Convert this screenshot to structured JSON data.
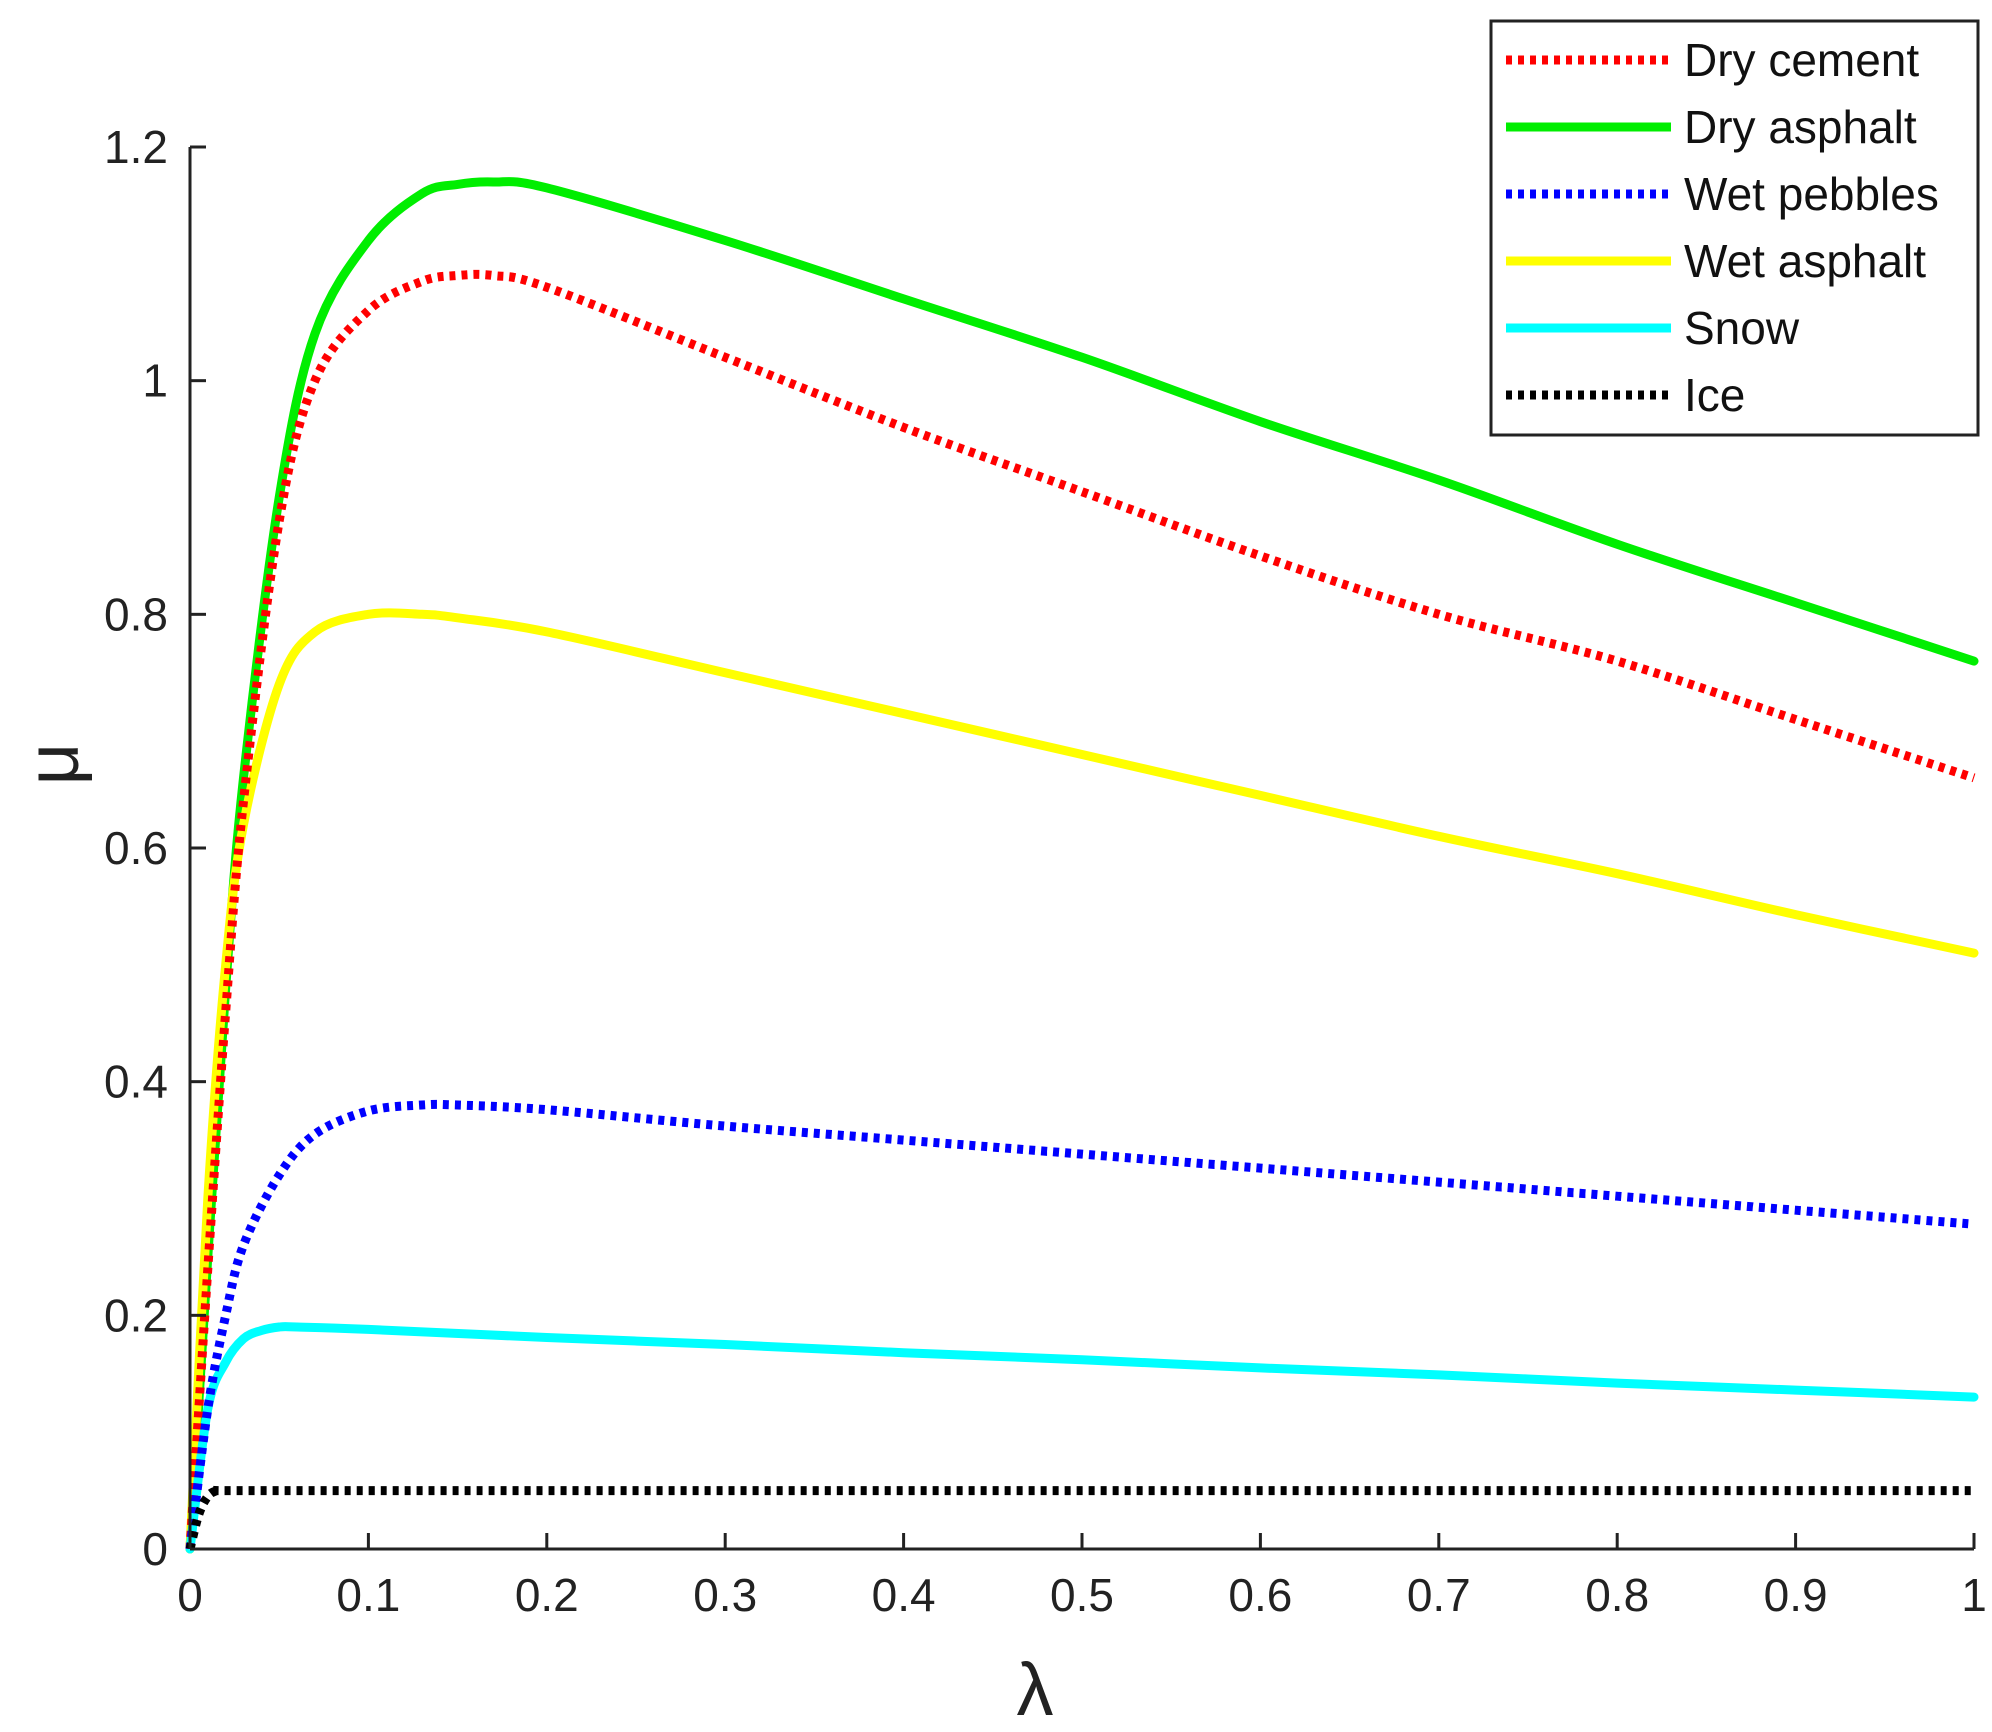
{
  "chart_data": {
    "type": "line",
    "title": "",
    "xlabel": "λ",
    "ylabel": "μ",
    "xlim": [
      0,
      1
    ],
    "ylim": [
      0,
      1.2
    ],
    "xticks": [
      0,
      0.1,
      0.2,
      0.3,
      0.4,
      0.5,
      0.6,
      0.7,
      0.8,
      0.9,
      1
    ],
    "xtick_labels": [
      "0",
      "0.1",
      "0.2",
      "0.3",
      "0.4",
      "0.5",
      "0.6",
      "0.7",
      "0.8",
      "0.9",
      "1"
    ],
    "yticks": [
      0,
      0.2,
      0.4,
      0.6,
      0.8,
      1,
      1.2
    ],
    "ytick_labels": [
      "0",
      "0.2",
      "0.4",
      "0.6",
      "0.8",
      "1",
      "1.2"
    ],
    "grid": false,
    "legend_position": "top-right",
    "series": [
      {
        "name": "Dry cement",
        "color": "#ff0000",
        "style": "dotted",
        "x": [
          0,
          0.01,
          0.02,
          0.03,
          0.05,
          0.07,
          0.1,
          0.13,
          0.15,
          0.17,
          0.2,
          0.3,
          0.4,
          0.5,
          0.6,
          0.7,
          0.8,
          0.9,
          1.0
        ],
        "values": [
          0,
          0.24,
          0.46,
          0.64,
          0.88,
          1.0,
          1.06,
          1.085,
          1.09,
          1.09,
          1.08,
          1.02,
          0.96,
          0.905,
          0.85,
          0.8,
          0.76,
          0.71,
          0.66
        ]
      },
      {
        "name": "Dry asphalt",
        "color": "#00ee00",
        "style": "solid",
        "x": [
          0,
          0.01,
          0.02,
          0.03,
          0.05,
          0.07,
          0.1,
          0.13,
          0.15,
          0.17,
          0.2,
          0.3,
          0.4,
          0.5,
          0.6,
          0.7,
          0.8,
          0.9,
          1.0
        ],
        "values": [
          0,
          0.25,
          0.48,
          0.66,
          0.9,
          1.04,
          1.12,
          1.16,
          1.168,
          1.17,
          1.165,
          1.12,
          1.07,
          1.02,
          0.965,
          0.915,
          0.86,
          0.81,
          0.76
        ]
      },
      {
        "name": "Wet pebbles",
        "color": "#0000ff",
        "style": "dotted",
        "x": [
          0,
          0.01,
          0.02,
          0.03,
          0.05,
          0.07,
          0.1,
          0.13,
          0.15,
          0.2,
          0.3,
          0.4,
          0.5,
          0.6,
          0.7,
          0.8,
          0.9,
          1.0
        ],
        "values": [
          0,
          0.12,
          0.2,
          0.26,
          0.32,
          0.355,
          0.375,
          0.38,
          0.38,
          0.376,
          0.362,
          0.35,
          0.338,
          0.326,
          0.314,
          0.302,
          0.29,
          0.278
        ]
      },
      {
        "name": "Wet asphalt",
        "color": "#ffff00",
        "style": "solid",
        "x": [
          0,
          0.01,
          0.02,
          0.03,
          0.05,
          0.07,
          0.1,
          0.13,
          0.15,
          0.2,
          0.3,
          0.4,
          0.5,
          0.6,
          0.7,
          0.8,
          0.9,
          1.0
        ],
        "values": [
          0,
          0.3,
          0.5,
          0.62,
          0.74,
          0.785,
          0.8,
          0.8,
          0.797,
          0.785,
          0.75,
          0.715,
          0.68,
          0.645,
          0.61,
          0.578,
          0.543,
          0.51
        ]
      },
      {
        "name": "Snow",
        "color": "#00ffff",
        "style": "solid",
        "x": [
          0,
          0.01,
          0.02,
          0.03,
          0.04,
          0.05,
          0.06,
          0.1,
          0.2,
          0.3,
          0.4,
          0.5,
          0.6,
          0.7,
          0.8,
          0.9,
          1.0
        ],
        "values": [
          0,
          0.12,
          0.16,
          0.18,
          0.187,
          0.19,
          0.19,
          0.188,
          0.181,
          0.175,
          0.168,
          0.162,
          0.155,
          0.149,
          0.142,
          0.136,
          0.13
        ]
      },
      {
        "name": "Ice",
        "color": "#000000",
        "style": "dotted",
        "x": [
          0,
          0.005,
          0.01,
          0.015,
          0.02,
          0.1,
          0.2,
          0.4,
          0.6,
          0.8,
          1.0
        ],
        "values": [
          0,
          0.03,
          0.045,
          0.05,
          0.05,
          0.05,
          0.05,
          0.05,
          0.05,
          0.05,
          0.05
        ]
      }
    ]
  }
}
